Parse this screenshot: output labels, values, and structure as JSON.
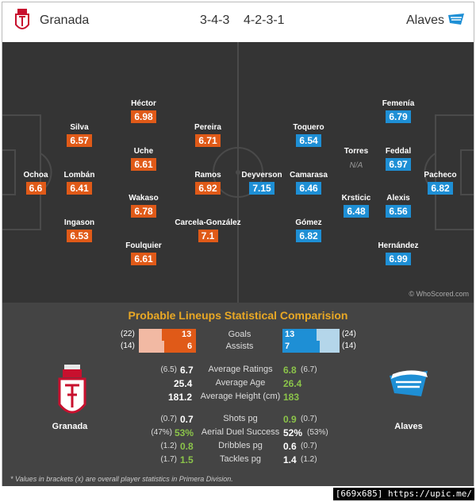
{
  "header": {
    "home_team": "Granada",
    "away_team": "Alaves",
    "home_formation": "3-4-3",
    "away_formation": "4-2-3-1"
  },
  "colors": {
    "home": "#e05a18",
    "away": "#1e8fd5",
    "pitch": "#343434",
    "title": "#e9a825",
    "positive": "#8bc34a"
  },
  "pitch": {
    "credit": "© WhoScored.com",
    "home_players": [
      {
        "name": "Ochoa",
        "rating": "6.6"
      },
      {
        "name": "Silva",
        "rating": "6.57"
      },
      {
        "name": "Lombán",
        "rating": "6.41"
      },
      {
        "name": "Ingason",
        "rating": "6.53"
      },
      {
        "name": "Héctor",
        "rating": "6.98"
      },
      {
        "name": "Uche",
        "rating": "6.61"
      },
      {
        "name": "Wakaso",
        "rating": "6.78"
      },
      {
        "name": "Foulquier",
        "rating": "6.61"
      },
      {
        "name": "Pereira",
        "rating": "6.71"
      },
      {
        "name": "Ramos",
        "rating": "6.92"
      },
      {
        "name": "Carcela-González",
        "rating": "7.1"
      }
    ],
    "away_players": [
      {
        "name": "Deyverson",
        "rating": "7.15"
      },
      {
        "name": "Toquero",
        "rating": "6.54"
      },
      {
        "name": "Camarasa",
        "rating": "6.46"
      },
      {
        "name": "Gómez",
        "rating": "6.82"
      },
      {
        "name": "Torres",
        "rating": "N/A"
      },
      {
        "name": "Krsticic",
        "rating": "6.48"
      },
      {
        "name": "Femenía",
        "rating": "6.79"
      },
      {
        "name": "Feddal",
        "rating": "6.97"
      },
      {
        "name": "Alexis",
        "rating": "6.56"
      },
      {
        "name": "Hernández",
        "rating": "6.99"
      },
      {
        "name": "Pacheco",
        "rating": "6.82"
      }
    ]
  },
  "comparison": {
    "title": "Probable Lineups Statistical Comparision",
    "bars": [
      {
        "label": "Goals",
        "home_bracket": "(22)",
        "home": "13",
        "away": "13",
        "away_bracket": "(24)",
        "home_share": 0.5,
        "away_share": 0.5
      },
      {
        "label": "Assists",
        "home_bracket": "(14)",
        "home": "6",
        "away": "7",
        "away_bracket": "(14)",
        "home_share": 0.46,
        "away_share": 0.54
      }
    ],
    "group1": [
      {
        "label": "Average Ratings",
        "home_bracket": "(6.5)",
        "home": "6.7",
        "away": "6.8",
        "away_bracket": "(6.7)",
        "home_color": "white",
        "away_color": "green"
      },
      {
        "label": "Average Age",
        "home_bracket": "",
        "home": "25.4",
        "away": "26.4",
        "away_bracket": "",
        "home_color": "white",
        "away_color": "green"
      },
      {
        "label": "Average Height (cm)",
        "home_bracket": "",
        "home": "181.2",
        "away": "183",
        "away_bracket": "",
        "home_color": "white",
        "away_color": "green"
      }
    ],
    "group2": [
      {
        "label": "Shots pg",
        "home_bracket": "(0.7)",
        "home": "0.7",
        "away": "0.9",
        "away_bracket": "(0.7)",
        "home_color": "white",
        "away_color": "green"
      },
      {
        "label": "Aerial Duel Success",
        "home_bracket": "(47%)",
        "home": "53%",
        "away": "52%",
        "away_bracket": "(53%)",
        "home_color": "green",
        "away_color": "white"
      },
      {
        "label": "Dribbles pg",
        "home_bracket": "(1.2)",
        "home": "0.8",
        "away": "0.6",
        "away_bracket": "(0.7)",
        "home_color": "green",
        "away_color": "white"
      },
      {
        "label": "Tackles pg",
        "home_bracket": "(1.7)",
        "home": "1.5",
        "away": "1.4",
        "away_bracket": "(1.2)",
        "home_color": "green",
        "away_color": "white"
      }
    ],
    "home_label": "Granada",
    "away_label": "Alaves",
    "footnote": "* Values in brackets (x) are overall player statistics in Primera Division."
  },
  "watermark": "[669x685] https://upic.me/"
}
